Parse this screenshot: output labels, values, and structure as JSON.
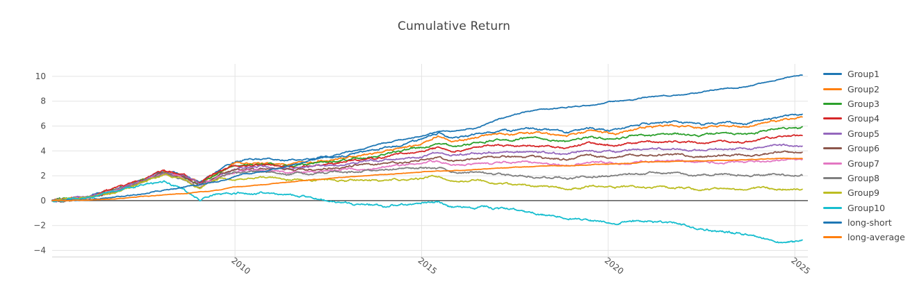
{
  "chart_data": {
    "type": "line",
    "title": "Cumulative Return",
    "xlabel": "",
    "ylabel": "",
    "grid": true,
    "zero_line": true,
    "legend_position": "right",
    "xlim": [
      2005.1,
      2025.35
    ],
    "ylim": [
      -4.53,
      11.0
    ],
    "x_ticks": [
      2010,
      2015,
      2020,
      2025
    ],
    "x_tick_labels": [
      "2010",
      "2015",
      "2020",
      "2025"
    ],
    "y_ticks": [
      -4,
      -2,
      0,
      2,
      4,
      6,
      8,
      10
    ],
    "y_tick_labels": [
      "−4",
      "−2",
      "0",
      "2",
      "4",
      "6",
      "8",
      "10"
    ],
    "x": [
      2005.1,
      2006.0,
      2006.8,
      2007.5,
      2008.1,
      2008.6,
      2009.05,
      2009.6,
      2010.0,
      2010.8,
      2011.5,
      2012.0,
      2013.0,
      2014.0,
      2015.0,
      2015.45,
      2015.8,
      2016.5,
      2017.0,
      2018.0,
      2018.9,
      2019.5,
      2020.2,
      2020.6,
      2021.0,
      2021.8,
      2022.5,
      2023.0,
      2023.7,
      2024.2,
      2024.8,
      2025.2
    ],
    "series": [
      {
        "name": "Group1",
        "color": "#1f77b4",
        "vol": 0.045,
        "values": [
          0,
          0.3,
          0.9,
          1.7,
          2.4,
          2.1,
          1.4,
          2.5,
          3.2,
          3.3,
          3.2,
          3.3,
          3.7,
          4.2,
          4.9,
          5.5,
          5.0,
          5.4,
          5.6,
          5.8,
          5.5,
          5.9,
          5.7,
          6.0,
          6.2,
          6.3,
          6.1,
          6.3,
          6.2,
          6.5,
          6.8,
          6.9
        ]
      },
      {
        "name": "Group2",
        "color": "#ff7f0e",
        "vol": 0.045,
        "values": [
          0,
          0.3,
          0.9,
          1.7,
          2.35,
          2.0,
          1.35,
          2.4,
          3.0,
          3.1,
          3.0,
          3.1,
          3.5,
          4.0,
          4.6,
          5.25,
          4.8,
          5.1,
          5.3,
          5.4,
          5.2,
          5.6,
          5.4,
          5.7,
          5.9,
          6.0,
          5.8,
          6.0,
          5.9,
          6.3,
          6.6,
          6.7
        ]
      },
      {
        "name": "Group3",
        "color": "#2ca02c",
        "vol": 0.045,
        "values": [
          0,
          0.25,
          0.85,
          1.6,
          2.3,
          1.95,
          1.3,
          2.3,
          2.9,
          3.0,
          2.85,
          2.95,
          3.3,
          3.7,
          4.3,
          4.7,
          4.4,
          4.7,
          4.9,
          5.0,
          4.7,
          5.1,
          4.9,
          5.2,
          5.3,
          5.4,
          5.2,
          5.4,
          5.3,
          5.6,
          5.85,
          5.9
        ]
      },
      {
        "name": "Group4",
        "color": "#d62728",
        "vol": 0.045,
        "values": [
          0,
          0.3,
          0.95,
          1.75,
          2.5,
          2.1,
          1.35,
          2.35,
          2.8,
          2.9,
          2.75,
          2.8,
          3.1,
          3.5,
          4.0,
          4.3,
          4.0,
          4.3,
          4.4,
          4.5,
          4.2,
          4.6,
          4.4,
          4.6,
          4.7,
          4.8,
          4.6,
          4.8,
          4.7,
          5.0,
          5.15,
          5.2
        ]
      },
      {
        "name": "Group5",
        "color": "#9467bd",
        "vol": 0.045,
        "values": [
          0,
          0.25,
          0.85,
          1.6,
          2.3,
          1.95,
          1.25,
          2.2,
          2.6,
          2.7,
          2.55,
          2.65,
          2.9,
          3.2,
          3.6,
          3.85,
          3.6,
          3.8,
          3.9,
          4.0,
          3.7,
          4.05,
          3.9,
          4.1,
          4.15,
          4.2,
          4.0,
          4.2,
          4.1,
          4.3,
          4.4,
          4.4
        ]
      },
      {
        "name": "Group6",
        "color": "#8c564b",
        "vol": 0.045,
        "values": [
          0,
          0.25,
          0.8,
          1.55,
          2.25,
          1.9,
          1.2,
          2.1,
          2.5,
          2.6,
          2.45,
          2.5,
          2.7,
          3.0,
          3.3,
          3.5,
          3.25,
          3.4,
          3.5,
          3.55,
          3.3,
          3.6,
          3.5,
          3.65,
          3.7,
          3.75,
          3.55,
          3.7,
          3.65,
          3.8,
          3.9,
          3.9
        ]
      },
      {
        "name": "Group7",
        "color": "#e377c2",
        "vol": 0.045,
        "values": [
          0,
          0.25,
          0.8,
          1.5,
          2.2,
          1.85,
          1.15,
          2.0,
          2.35,
          2.45,
          2.3,
          2.35,
          2.5,
          2.75,
          3.0,
          3.15,
          2.9,
          3.0,
          3.05,
          3.1,
          2.85,
          3.1,
          3.0,
          3.1,
          3.15,
          3.2,
          3.0,
          3.15,
          3.1,
          3.2,
          3.3,
          3.3
        ]
      },
      {
        "name": "Group8",
        "color": "#7f7f7f",
        "vol": 0.045,
        "values": [
          0,
          0.25,
          0.75,
          1.45,
          2.15,
          1.8,
          1.1,
          1.9,
          2.2,
          2.3,
          2.1,
          2.15,
          2.3,
          2.5,
          2.6,
          2.65,
          2.4,
          2.3,
          2.1,
          1.95,
          1.8,
          2.0,
          1.95,
          2.1,
          2.15,
          2.2,
          2.0,
          2.1,
          2.0,
          2.1,
          2.0,
          2.05
        ]
      },
      {
        "name": "Group9",
        "color": "#bcbd22",
        "vol": 0.045,
        "values": [
          0,
          0.2,
          0.7,
          1.4,
          2.1,
          1.75,
          1.05,
          1.8,
          1.7,
          1.85,
          1.7,
          1.65,
          1.6,
          1.65,
          1.8,
          2.0,
          1.5,
          1.6,
          1.35,
          1.2,
          1.0,
          1.15,
          1.05,
          1.15,
          1.1,
          1.05,
          0.9,
          1.0,
          0.9,
          1.0,
          0.85,
          0.9
        ]
      },
      {
        "name": "Group10",
        "color": "#17becf",
        "vol": 0.05,
        "values": [
          0,
          0.2,
          0.7,
          1.3,
          1.5,
          1.0,
          0.1,
          0.7,
          0.6,
          0.65,
          0.45,
          0.3,
          -0.25,
          -0.5,
          -0.2,
          -0.05,
          -0.5,
          -0.55,
          -0.6,
          -1.05,
          -1.35,
          -1.5,
          -1.85,
          -1.6,
          -1.7,
          -1.8,
          -2.3,
          -2.45,
          -2.7,
          -3.0,
          -3.4,
          -3.25
        ]
      },
      {
        "name": "long-short",
        "color": "#1f77b4",
        "vol": 0.025,
        "values": [
          0,
          0.1,
          0.3,
          0.55,
          0.85,
          1.05,
          1.3,
          1.6,
          2.0,
          2.4,
          2.8,
          3.2,
          3.9,
          4.6,
          5.2,
          5.6,
          5.6,
          5.9,
          6.5,
          7.3,
          7.5,
          7.7,
          8.0,
          8.1,
          8.3,
          8.5,
          8.7,
          9.0,
          9.2,
          9.5,
          9.9,
          10.1
        ]
      },
      {
        "name": "long-average",
        "color": "#ff7f0e",
        "vol": 0.012,
        "values": [
          0,
          0.05,
          0.15,
          0.3,
          0.45,
          0.55,
          0.7,
          0.85,
          1.1,
          1.3,
          1.5,
          1.65,
          1.9,
          2.1,
          2.3,
          2.4,
          2.4,
          2.5,
          2.6,
          2.75,
          2.8,
          2.9,
          2.95,
          3.0,
          3.1,
          3.15,
          3.2,
          3.25,
          3.3,
          3.35,
          3.4,
          3.4
        ]
      }
    ]
  },
  "style_colors": {
    "grid": "#e3e3e3",
    "axis_line": "#d0d0d0",
    "zero_line": "#333333",
    "tick_text": "#4a4a4a",
    "title_text": "#444444"
  }
}
